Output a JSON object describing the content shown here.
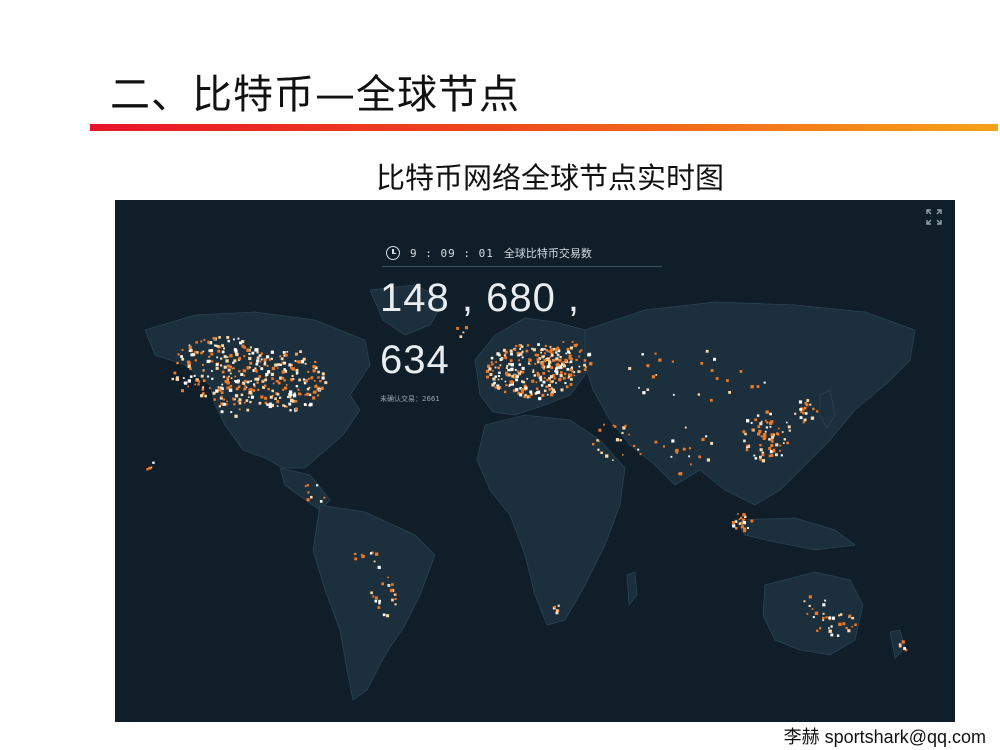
{
  "slide": {
    "title": "二、比特币—全球节点",
    "subtitle": "比特币网络全球节点实时图",
    "footer": "李赫 sportshark@qq.com",
    "rule_colors": [
      "#e8142a",
      "#f7a21a"
    ]
  },
  "map": {
    "background_color": "#0f1e29",
    "land_color": "#1b2f3c",
    "node_color_primary": "#f07a23",
    "node_color_secondary": "#ffd8a8",
    "node_color_white": "#ffffff",
    "clock": "9 : 09 : 01",
    "transactions_label": "全球比特币交易数",
    "transactions_line1": "148 , 680 ,",
    "transactions_line2": "634",
    "pending_label": "未确认交易：2661",
    "icons": {
      "fullscreen": "expand-icon",
      "clock": "clock-icon"
    }
  }
}
